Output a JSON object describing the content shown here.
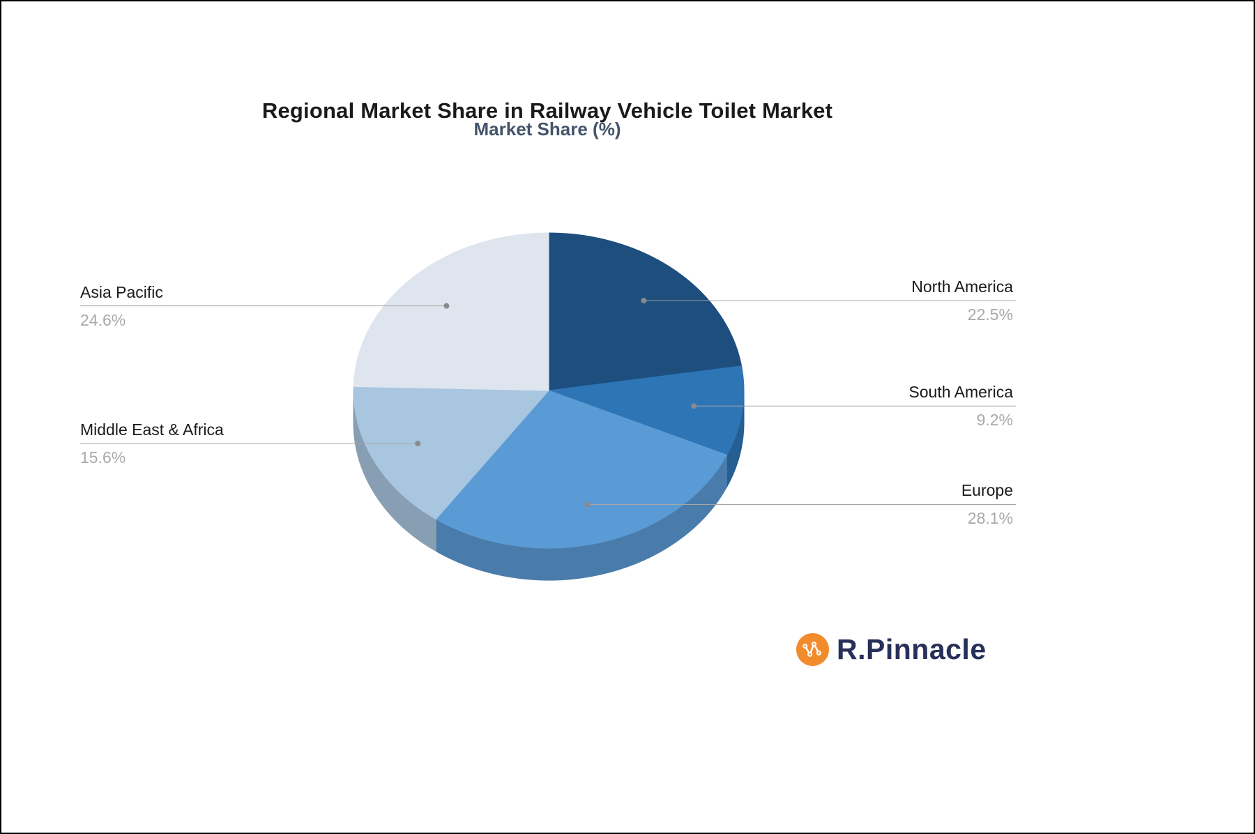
{
  "chart_data": {
    "type": "pie",
    "title": "Regional Market Share in Railway Vehicle Toilet Market",
    "subtitle": "Market Share (%)",
    "unit": "%",
    "direction": "clockwise",
    "start_angle_deg": 270,
    "slices": [
      {
        "label": "North America",
        "value": 22.5,
        "pct_label": "22.5%",
        "color": "#1D4E7E"
      },
      {
        "label": "South America",
        "value": 9.2,
        "pct_label": "9.2%",
        "color": "#2E75B6"
      },
      {
        "label": "Europe",
        "value": 28.1,
        "pct_label": "28.1%",
        "color": "#5B9BD5"
      },
      {
        "label": "Middle East & Africa",
        "value": 15.6,
        "pct_label": "15.6%",
        "color": "#A9C6E0"
      },
      {
        "label": "Asia Pacific",
        "value": 24.6,
        "pct_label": "24.6%",
        "color": "#DFE5EE"
      }
    ],
    "style": {
      "label_name_color": "#1A1A1A",
      "label_value_color": "#A9A9A9",
      "leader_line_color": "#A6A6A6",
      "dot_color": "#8A8A8A",
      "subtitle_color": "#44546A"
    }
  },
  "brand": {
    "name": "R.Pinnacle",
    "icon": "network-nodes-icon",
    "icon_color": "#F28B2B",
    "text_color": "#273059"
  }
}
